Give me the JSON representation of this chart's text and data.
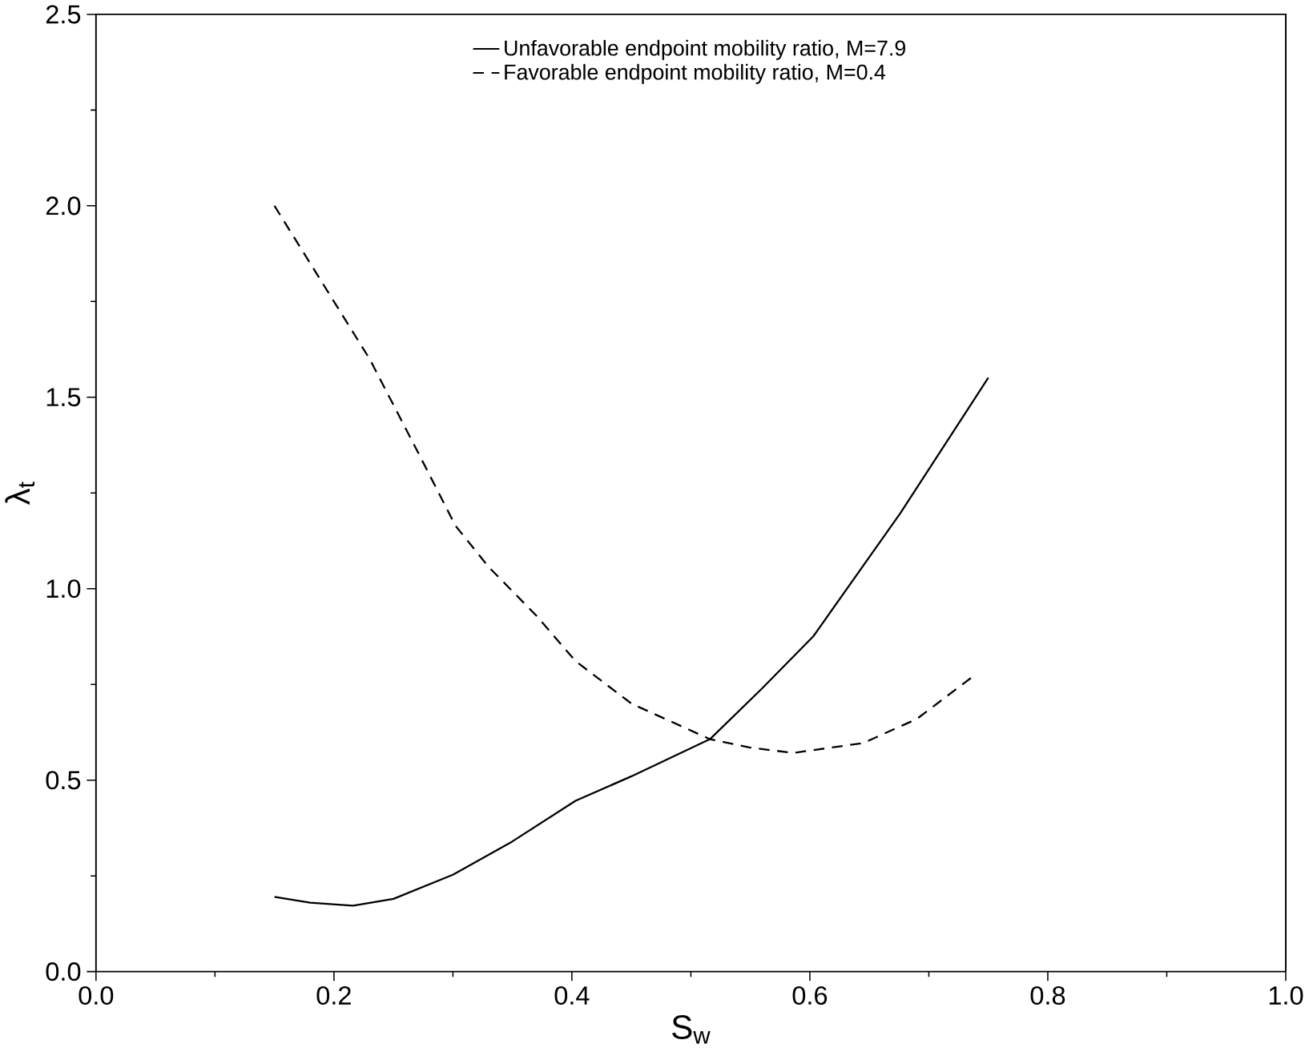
{
  "chart_data": {
    "type": "line",
    "xlabel": "S$_{w}$",
    "ylabel": "λ$_{t}$",
    "xlim": [
      0,
      1
    ],
    "ylim": [
      0,
      2.5
    ],
    "xticks": [
      {
        "value": 0,
        "label": "0.0"
      },
      0.2,
      0.4,
      0.6,
      0.8,
      {
        "value": 1,
        "label": "1.0"
      }
    ],
    "yticks": [
      {
        "value": 0,
        "label": "0.0"
      },
      0.5,
      {
        "value": 1,
        "label": "1.0"
      },
      1.5,
      {
        "value": 2,
        "label": "2.0"
      },
      2.5
    ],
    "grid": false,
    "legend": "top",
    "series": [
      {
        "name": "Unfavorable endpoint mobility ratio, M=7.9",
        "color": "#000000",
        "line_style": "solid",
        "x": [
          0.15,
          0.18,
          0.216,
          0.25,
          0.3,
          0.35,
          0.403,
          0.45,
          0.516,
          0.56,
          0.603,
          0.676,
          0.75
        ],
        "values": [
          0.195,
          0.18,
          0.172,
          0.19,
          0.253,
          0.34,
          0.446,
          0.51,
          0.607,
          0.74,
          0.876,
          1.197,
          1.551
        ]
      },
      {
        "name": "Favorable endpoint mobility ratio, M=0.4",
        "color": "#000000",
        "line_style": "dashed",
        "x": [
          0.15,
          0.19,
          0.23,
          0.27,
          0.302,
          0.33,
          0.37,
          0.403,
          0.45,
          0.516,
          0.55,
          0.586,
          0.645,
          0.69,
          0.738
        ],
        "values": [
          2.0,
          1.8,
          1.6,
          1.36,
          1.165,
          1.057,
          0.93,
          0.811,
          0.7,
          0.607,
          0.585,
          0.571,
          0.597,
          0.66,
          0.773
        ]
      }
    ]
  }
}
